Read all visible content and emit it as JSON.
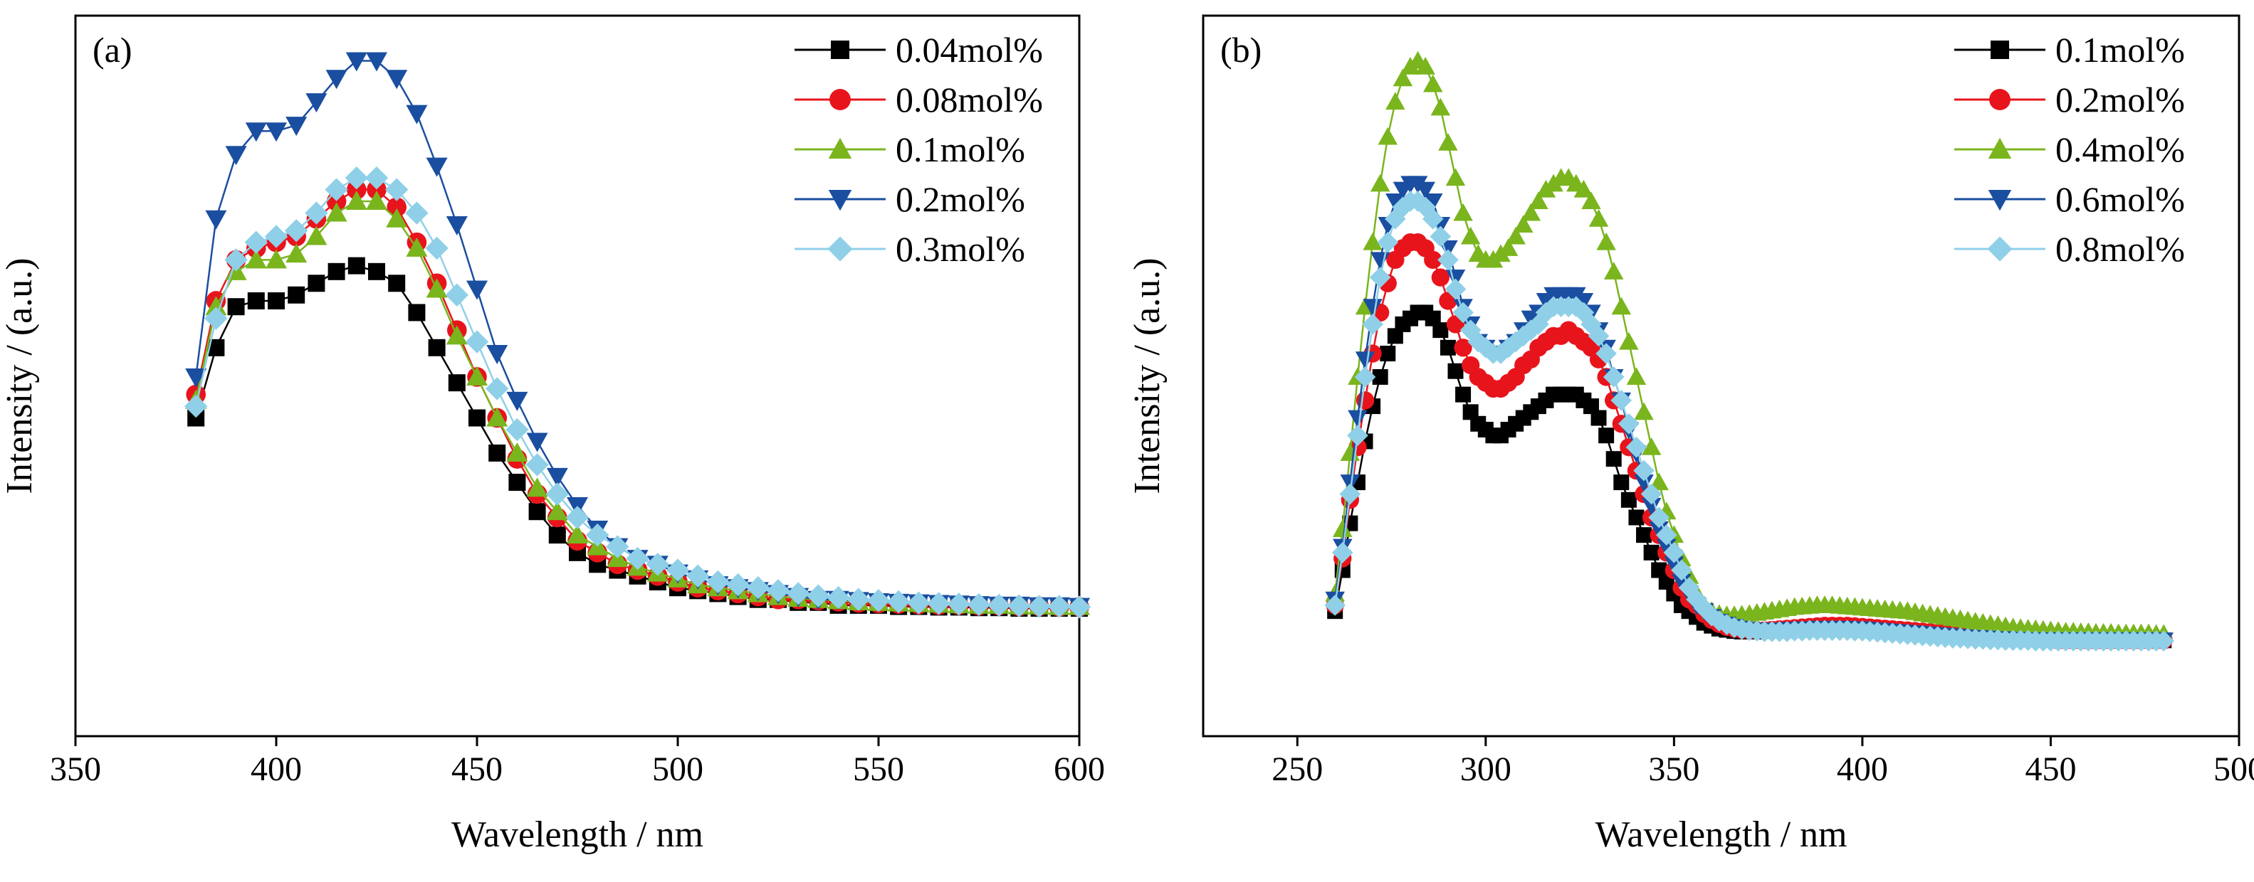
{
  "chart_data": [
    {
      "type": "line",
      "panel_label": "(a)",
      "xlabel": "Wavelength / nm",
      "ylabel": "Intensity / (a.u.)",
      "xlim": [
        350,
        600
      ],
      "ylim": [
        0,
        1
      ],
      "xticks": [
        350,
        400,
        450,
        500,
        550,
        600
      ],
      "yticks_shown": false,
      "legend_position": "top-right",
      "x": [
        380,
        385,
        390,
        395,
        400,
        405,
        410,
        415,
        420,
        425,
        430,
        435,
        440,
        445,
        450,
        455,
        460,
        465,
        470,
        475,
        480,
        485,
        490,
        495,
        500,
        505,
        510,
        515,
        520,
        525,
        530,
        535,
        540,
        545,
        550,
        555,
        560,
        565,
        570,
        575,
        580,
        585,
        590,
        595,
        600
      ],
      "series": [
        {
          "name": "0.04mol%",
          "color": "#000000",
          "marker": "square",
          "values": [
            0.41,
            0.53,
            0.6,
            0.61,
            0.61,
            0.62,
            0.64,
            0.66,
            0.67,
            0.66,
            0.64,
            0.59,
            0.53,
            0.47,
            0.41,
            0.35,
            0.3,
            0.25,
            0.21,
            0.18,
            0.16,
            0.15,
            0.14,
            0.13,
            0.12,
            0.115,
            0.11,
            0.105,
            0.1,
            0.1,
            0.095,
            0.095,
            0.09,
            0.09,
            0.09,
            0.088,
            0.088,
            0.087,
            0.087,
            0.086,
            0.086,
            0.085,
            0.085,
            0.085,
            0.085
          ]
        },
        {
          "name": "0.08mol%",
          "color": "#e8141c",
          "marker": "circle",
          "values": [
            0.45,
            0.61,
            0.68,
            0.7,
            0.71,
            0.72,
            0.75,
            0.78,
            0.8,
            0.8,
            0.77,
            0.71,
            0.64,
            0.56,
            0.48,
            0.41,
            0.34,
            0.28,
            0.24,
            0.2,
            0.18,
            0.16,
            0.15,
            0.14,
            0.13,
            0.12,
            0.115,
            0.11,
            0.105,
            0.1,
            0.1,
            0.098,
            0.096,
            0.094,
            0.093,
            0.092,
            0.091,
            0.09,
            0.09,
            0.089,
            0.089,
            0.088,
            0.088,
            0.087,
            0.087
          ]
        },
        {
          "name": "0.1mol%",
          "color": "#7ab51d",
          "marker": "triangle-up",
          "values": [
            0.44,
            0.6,
            0.66,
            0.68,
            0.68,
            0.69,
            0.72,
            0.76,
            0.78,
            0.78,
            0.75,
            0.7,
            0.63,
            0.55,
            0.48,
            0.41,
            0.35,
            0.29,
            0.25,
            0.21,
            0.19,
            0.17,
            0.155,
            0.145,
            0.135,
            0.125,
            0.12,
            0.115,
            0.11,
            0.105,
            0.102,
            0.1,
            0.098,
            0.096,
            0.095,
            0.094,
            0.093,
            0.092,
            0.091,
            0.09,
            0.09,
            0.089,
            0.089,
            0.088,
            0.088
          ]
        },
        {
          "name": "0.2mol%",
          "color": "#1a4ea0",
          "marker": "triangle-down",
          "values": [
            0.48,
            0.75,
            0.86,
            0.9,
            0.9,
            0.91,
            0.95,
            0.99,
            1.02,
            1.02,
            0.99,
            0.93,
            0.84,
            0.74,
            0.63,
            0.52,
            0.44,
            0.37,
            0.31,
            0.26,
            0.22,
            0.19,
            0.17,
            0.16,
            0.145,
            0.135,
            0.125,
            0.12,
            0.115,
            0.11,
            0.105,
            0.1,
            0.1,
            0.098,
            0.096,
            0.095,
            0.094,
            0.093,
            0.092,
            0.091,
            0.09,
            0.09,
            0.089,
            0.089,
            0.088
          ]
        },
        {
          "name": "0.3mol%",
          "color": "#8fd0e8",
          "marker": "diamond",
          "values": [
            0.43,
            0.58,
            0.68,
            0.71,
            0.72,
            0.73,
            0.76,
            0.8,
            0.82,
            0.82,
            0.8,
            0.76,
            0.7,
            0.62,
            0.54,
            0.46,
            0.39,
            0.33,
            0.28,
            0.24,
            0.21,
            0.19,
            0.17,
            0.16,
            0.15,
            0.14,
            0.13,
            0.125,
            0.12,
            0.115,
            0.11,
            0.106,
            0.103,
            0.1,
            0.098,
            0.096,
            0.094,
            0.093,
            0.092,
            0.091,
            0.09,
            0.089,
            0.088,
            0.088,
            0.087
          ]
        }
      ]
    },
    {
      "type": "line",
      "panel_label": "(b)",
      "xlabel": "Wavelength / nm",
      "ylabel": "Intensity / (a.u.)",
      "xlim": [
        225,
        500
      ],
      "ylim": [
        0,
        1
      ],
      "xticks": [
        250,
        300,
        350,
        400,
        450,
        500
      ],
      "yticks_shown": false,
      "legend_position": "top-right",
      "x": [
        260,
        262,
        264,
        266,
        268,
        270,
        272,
        274,
        276,
        278,
        280,
        282,
        284,
        286,
        288,
        290,
        292,
        294,
        296,
        298,
        300,
        302,
        304,
        306,
        308,
        310,
        312,
        314,
        316,
        318,
        320,
        322,
        324,
        326,
        328,
        330,
        332,
        334,
        336,
        338,
        340,
        342,
        344,
        346,
        348,
        350,
        352,
        354,
        356,
        358,
        360,
        362,
        364,
        366,
        368,
        370,
        372,
        374,
        376,
        378,
        380,
        382,
        384,
        386,
        388,
        390,
        392,
        394,
        396,
        398,
        400,
        402,
        404,
        406,
        408,
        410,
        412,
        414,
        416,
        418,
        420,
        422,
        424,
        426,
        428,
        430,
        432,
        434,
        436,
        438,
        440,
        442,
        444,
        446,
        448,
        450,
        452,
        454,
        456,
        458,
        460,
        462,
        464,
        466,
        468,
        470,
        472,
        474,
        476,
        478,
        480
      ],
      "series": [
        {
          "name": "0.1mol%",
          "color": "#000000",
          "marker": "square",
          "values": [
            0.08,
            0.15,
            0.23,
            0.3,
            0.37,
            0.43,
            0.48,
            0.52,
            0.55,
            0.57,
            0.58,
            0.59,
            0.59,
            0.58,
            0.56,
            0.53,
            0.49,
            0.45,
            0.42,
            0.4,
            0.39,
            0.38,
            0.38,
            0.39,
            0.4,
            0.41,
            0.42,
            0.43,
            0.44,
            0.45,
            0.45,
            0.45,
            0.45,
            0.44,
            0.43,
            0.41,
            0.38,
            0.34,
            0.3,
            0.27,
            0.24,
            0.21,
            0.18,
            0.15,
            0.13,
            0.11,
            0.09,
            0.08,
            0.07,
            0.06,
            0.055,
            0.05,
            0.048,
            0.046,
            0.045,
            0.045,
            0.045,
            0.046,
            0.047,
            0.048,
            0.05,
            0.051,
            0.052,
            0.053,
            0.054,
            0.055,
            0.055,
            0.055,
            0.055,
            0.054,
            0.053,
            0.052,
            0.051,
            0.05,
            0.049,
            0.048,
            0.047,
            0.046,
            0.045,
            0.044,
            0.043,
            0.042,
            0.041,
            0.04,
            0.039,
            0.038,
            0.037,
            0.036,
            0.035,
            0.034,
            0.034,
            0.033,
            0.032,
            0.032,
            0.031,
            0.031,
            0.03,
            0.03,
            0.03,
            0.03,
            0.03,
            0.03,
            0.03,
            0.03,
            0.03,
            0.03,
            0.03,
            0.03,
            0.03,
            0.03,
            0.03
          ]
        },
        {
          "name": "0.2mol%",
          "color": "#e8141c",
          "marker": "circle",
          "values": [
            0.09,
            0.17,
            0.27,
            0.36,
            0.44,
            0.52,
            0.59,
            0.64,
            0.68,
            0.7,
            0.71,
            0.71,
            0.7,
            0.68,
            0.65,
            0.61,
            0.57,
            0.53,
            0.5,
            0.48,
            0.47,
            0.46,
            0.46,
            0.47,
            0.48,
            0.5,
            0.51,
            0.53,
            0.54,
            0.55,
            0.55,
            0.56,
            0.55,
            0.54,
            0.53,
            0.51,
            0.48,
            0.44,
            0.4,
            0.36,
            0.32,
            0.28,
            0.24,
            0.21,
            0.18,
            0.15,
            0.12,
            0.1,
            0.09,
            0.075,
            0.065,
            0.058,
            0.053,
            0.05,
            0.048,
            0.047,
            0.047,
            0.047,
            0.048,
            0.049,
            0.05,
            0.051,
            0.052,
            0.053,
            0.054,
            0.055,
            0.055,
            0.055,
            0.055,
            0.054,
            0.053,
            0.052,
            0.051,
            0.05,
            0.049,
            0.048,
            0.047,
            0.046,
            0.045,
            0.044,
            0.043,
            0.042,
            0.041,
            0.04,
            0.039,
            0.038,
            0.037,
            0.036,
            0.035,
            0.034,
            0.034,
            0.033,
            0.032,
            0.032,
            0.031,
            0.031,
            0.03,
            0.03,
            0.03,
            0.03,
            0.03,
            0.03,
            0.03,
            0.03,
            0.03,
            0.03,
            0.03,
            0.03,
            0.03,
            0.03,
            0.03
          ]
        },
        {
          "name": "0.4mol%",
          "color": "#7ab51d",
          "marker": "triangle-up",
          "values": [
            0.11,
            0.22,
            0.35,
            0.48,
            0.6,
            0.71,
            0.81,
            0.89,
            0.95,
            0.99,
            1.01,
            1.02,
            1.01,
            0.98,
            0.94,
            0.88,
            0.82,
            0.76,
            0.72,
            0.69,
            0.68,
            0.68,
            0.69,
            0.7,
            0.72,
            0.74,
            0.76,
            0.78,
            0.8,
            0.81,
            0.82,
            0.82,
            0.81,
            0.8,
            0.78,
            0.75,
            0.71,
            0.66,
            0.6,
            0.54,
            0.48,
            0.42,
            0.36,
            0.3,
            0.25,
            0.21,
            0.17,
            0.14,
            0.11,
            0.09,
            0.08,
            0.075,
            0.073,
            0.073,
            0.074,
            0.075,
            0.077,
            0.079,
            0.081,
            0.083,
            0.085,
            0.087,
            0.088,
            0.089,
            0.09,
            0.09,
            0.09,
            0.089,
            0.088,
            0.087,
            0.086,
            0.085,
            0.084,
            0.083,
            0.082,
            0.081,
            0.08,
            0.078,
            0.076,
            0.074,
            0.072,
            0.07,
            0.068,
            0.066,
            0.064,
            0.062,
            0.06,
            0.058,
            0.056,
            0.054,
            0.052,
            0.051,
            0.05,
            0.049,
            0.048,
            0.047,
            0.046,
            0.045,
            0.045,
            0.044,
            0.044,
            0.043,
            0.043,
            0.043,
            0.042,
            0.042,
            0.042,
            0.042,
            0.042,
            0.041,
            0.041
          ]
        },
        {
          "name": "0.6mol%",
          "color": "#1a4ea0",
          "marker": "triangle-down",
          "values": [
            0.1,
            0.19,
            0.3,
            0.41,
            0.51,
            0.6,
            0.68,
            0.74,
            0.78,
            0.8,
            0.81,
            0.81,
            0.8,
            0.78,
            0.74,
            0.7,
            0.65,
            0.6,
            0.57,
            0.54,
            0.53,
            0.52,
            0.52,
            0.53,
            0.54,
            0.56,
            0.58,
            0.59,
            0.61,
            0.62,
            0.62,
            0.62,
            0.62,
            0.61,
            0.59,
            0.56,
            0.53,
            0.48,
            0.44,
            0.39,
            0.35,
            0.3,
            0.26,
            0.22,
            0.19,
            0.16,
            0.13,
            0.11,
            0.09,
            0.08,
            0.07,
            0.062,
            0.057,
            0.053,
            0.05,
            0.048,
            0.047,
            0.047,
            0.047,
            0.047,
            0.048,
            0.048,
            0.049,
            0.049,
            0.05,
            0.05,
            0.05,
            0.05,
            0.05,
            0.049,
            0.049,
            0.048,
            0.047,
            0.046,
            0.045,
            0.044,
            0.043,
            0.042,
            0.041,
            0.04,
            0.039,
            0.038,
            0.037,
            0.036,
            0.035,
            0.034,
            0.034,
            0.033,
            0.032,
            0.032,
            0.031,
            0.031,
            0.03,
            0.03,
            0.03,
            0.03,
            0.03,
            0.03,
            0.03,
            0.03,
            0.03,
            0.03,
            0.03,
            0.03,
            0.03,
            0.03,
            0.03,
            0.03,
            0.03,
            0.03,
            0.03
          ]
        },
        {
          "name": "0.8mol%",
          "color": "#8fd0e8",
          "marker": "diamond",
          "values": [
            0.09,
            0.18,
            0.28,
            0.38,
            0.48,
            0.57,
            0.65,
            0.71,
            0.75,
            0.77,
            0.78,
            0.78,
            0.77,
            0.75,
            0.72,
            0.68,
            0.63,
            0.59,
            0.56,
            0.54,
            0.53,
            0.52,
            0.52,
            0.53,
            0.54,
            0.55,
            0.56,
            0.57,
            0.59,
            0.6,
            0.6,
            0.6,
            0.6,
            0.59,
            0.57,
            0.55,
            0.52,
            0.48,
            0.44,
            0.4,
            0.36,
            0.32,
            0.28,
            0.24,
            0.21,
            0.18,
            0.15,
            0.12,
            0.1,
            0.085,
            0.072,
            0.063,
            0.057,
            0.052,
            0.049,
            0.047,
            0.046,
            0.045,
            0.045,
            0.045,
            0.045,
            0.046,
            0.046,
            0.047,
            0.047,
            0.047,
            0.047,
            0.047,
            0.047,
            0.046,
            0.046,
            0.045,
            0.044,
            0.043,
            0.042,
            0.041,
            0.04,
            0.039,
            0.038,
            0.037,
            0.036,
            0.035,
            0.034,
            0.034,
            0.033,
            0.032,
            0.032,
            0.031,
            0.031,
            0.03,
            0.03,
            0.03,
            0.03,
            0.029,
            0.029,
            0.029,
            0.029,
            0.029,
            0.029,
            0.029,
            0.029,
            0.029,
            0.029,
            0.029,
            0.029,
            0.029,
            0.029,
            0.029,
            0.029,
            0.029,
            0.029
          ]
        }
      ]
    }
  ]
}
